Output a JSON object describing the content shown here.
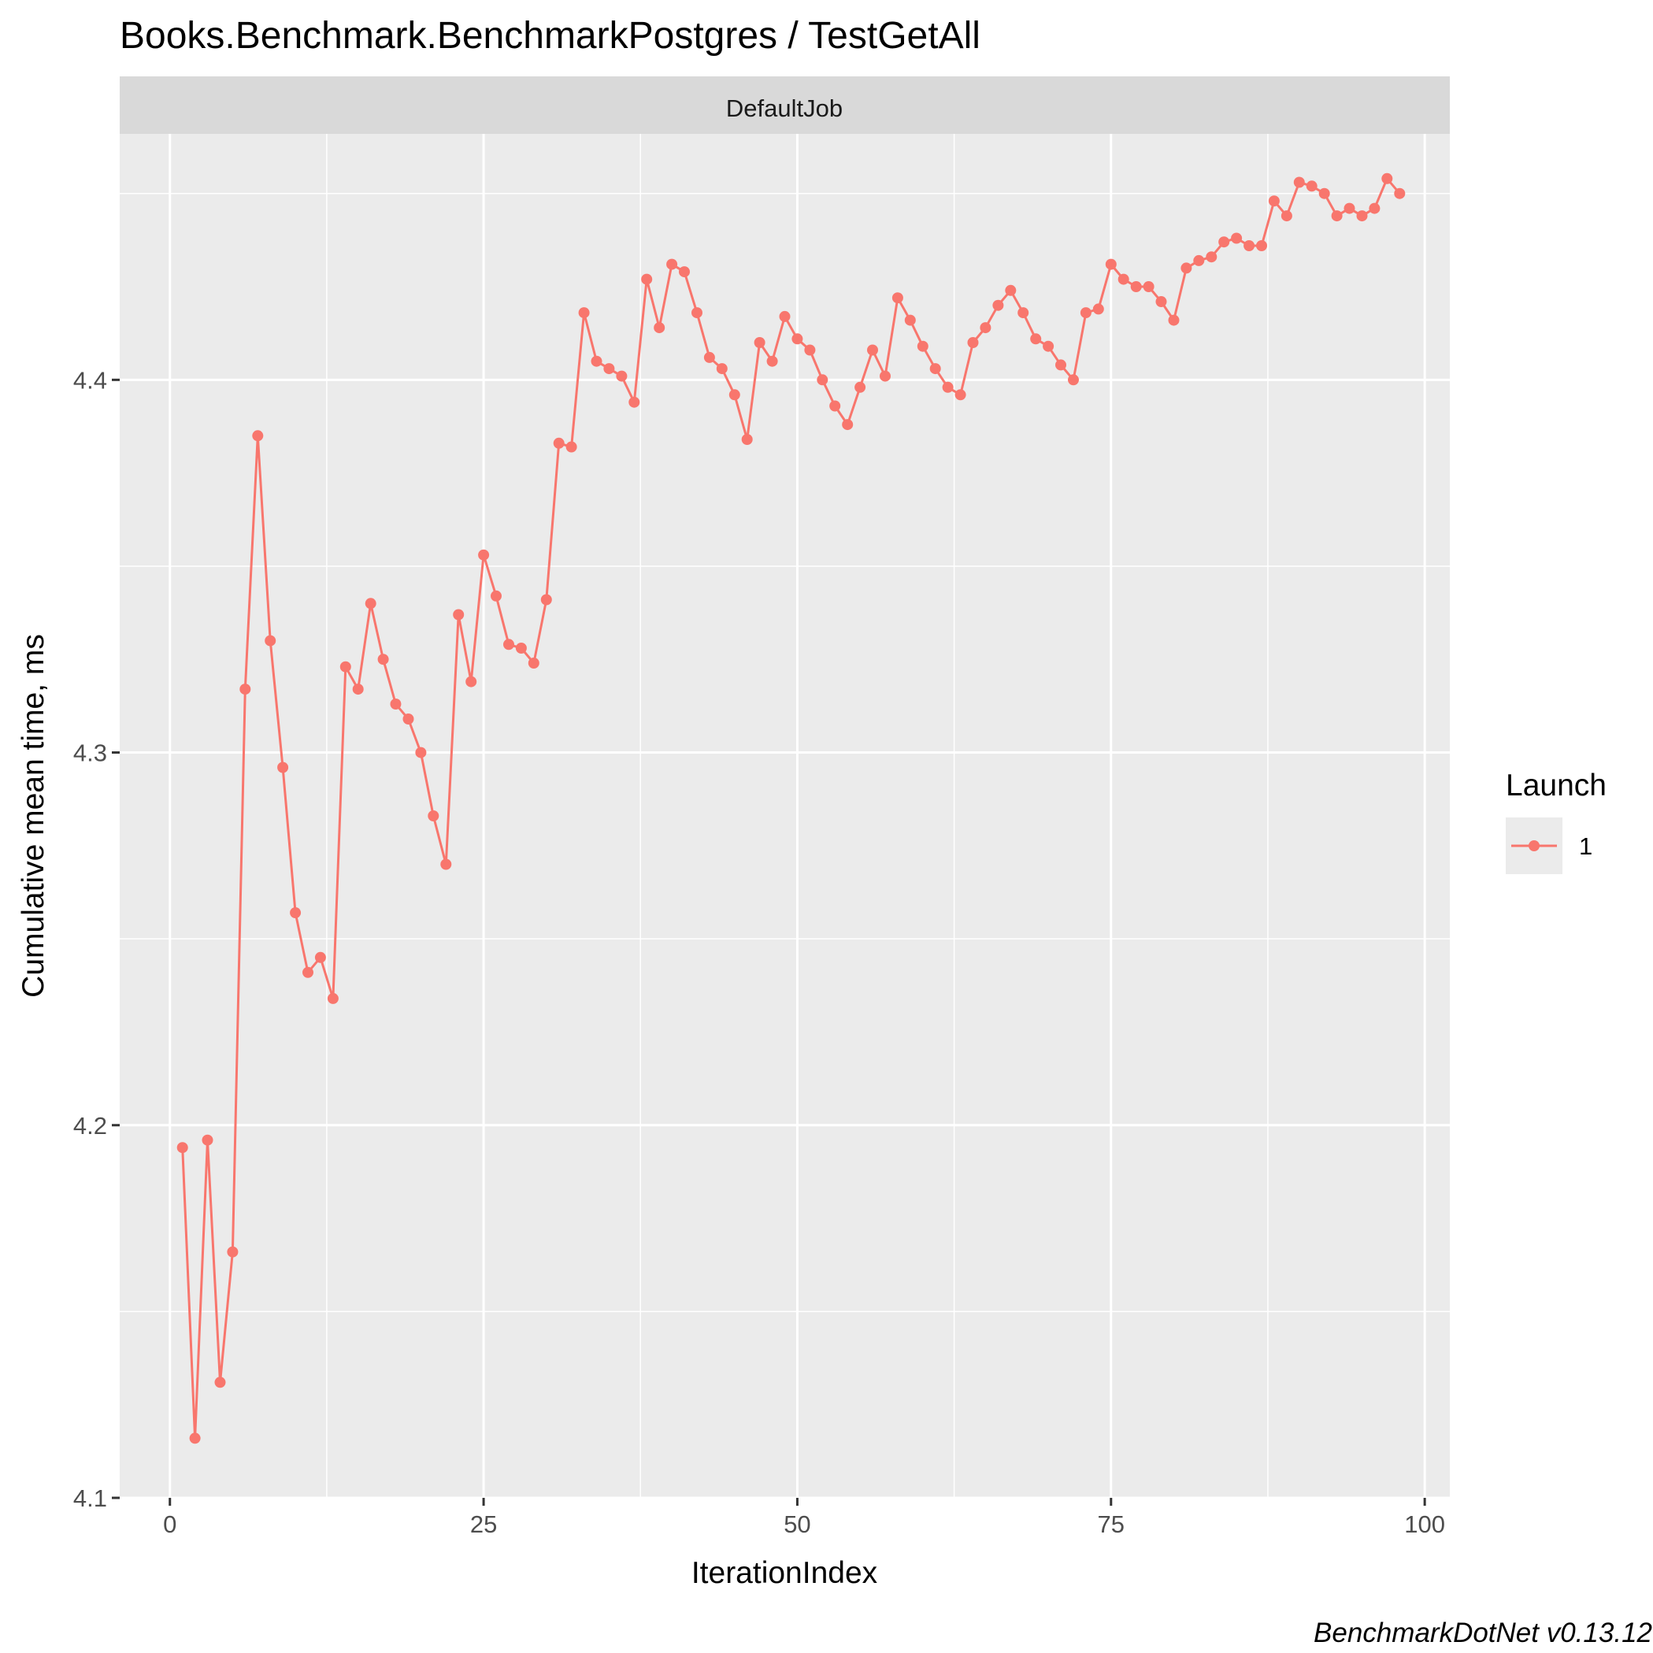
{
  "chart_data": {
    "type": "line",
    "title": "Books.Benchmark.BenchmarkPostgres / TestGetAll",
    "facet_label": "DefaultJob",
    "xlabel": "IterationIndex",
    "ylabel": "Cumulative mean time, ms",
    "xlim": [
      -4,
      102
    ],
    "ylim": [
      4.1,
      4.466
    ],
    "x_ticks": [
      0,
      25,
      50,
      75,
      100
    ],
    "y_ticks": [
      4.1,
      4.2,
      4.3,
      4.4
    ],
    "x_tick_labels": [
      "0",
      "25",
      "50",
      "75",
      "100"
    ],
    "y_tick_labels": [
      "4.1",
      "4.2",
      "4.3",
      "4.4"
    ],
    "grid": true,
    "legend": {
      "title": "Launch",
      "position": "right",
      "entries": [
        "1"
      ]
    },
    "caption": "BenchmarkDotNet v0.13.12",
    "colors": {
      "series": "#f8766d",
      "panel": "#ebebeb",
      "strip": "#d9d9d9",
      "grid": "#ffffff"
    },
    "series": [
      {
        "name": "1",
        "x": [
          1,
          2,
          3,
          4,
          5,
          6,
          7,
          8,
          9,
          10,
          11,
          12,
          13,
          14,
          15,
          16,
          17,
          18,
          19,
          20,
          21,
          22,
          23,
          24,
          25,
          26,
          27,
          28,
          29,
          30,
          31,
          32,
          33,
          34,
          35,
          36,
          37,
          38,
          39,
          40,
          41,
          42,
          43,
          44,
          45,
          46,
          47,
          48,
          49,
          50,
          51,
          52,
          53,
          54,
          55,
          56,
          57,
          58,
          59,
          60,
          61,
          62,
          63,
          64,
          65,
          66,
          67,
          68,
          69,
          70,
          71,
          72,
          73,
          74,
          75,
          76,
          77,
          78,
          79,
          80,
          81,
          82,
          83,
          84,
          85,
          86,
          87,
          88,
          89,
          90,
          91,
          92,
          93,
          94,
          95,
          96,
          97,
          98
        ],
        "values": [
          4.194,
          4.116,
          4.196,
          4.131,
          4.166,
          4.317,
          4.385,
          4.33,
          4.296,
          4.257,
          4.241,
          4.245,
          4.234,
          4.323,
          4.317,
          4.34,
          4.325,
          4.313,
          4.309,
          4.3,
          4.283,
          4.27,
          4.337,
          4.319,
          4.353,
          4.342,
          4.329,
          4.328,
          4.324,
          4.341,
          4.383,
          4.382,
          4.418,
          4.405,
          4.403,
          4.401,
          4.394,
          4.427,
          4.414,
          4.431,
          4.429,
          4.418,
          4.406,
          4.403,
          4.396,
          4.384,
          4.41,
          4.405,
          4.417,
          4.411,
          4.408,
          4.4,
          4.393,
          4.388,
          4.398,
          4.408,
          4.401,
          4.422,
          4.416,
          4.409,
          4.403,
          4.398,
          4.396,
          4.41,
          4.414,
          4.42,
          4.424,
          4.418,
          4.411,
          4.409,
          4.404,
          4.4,
          4.418,
          4.419,
          4.431,
          4.427,
          4.425,
          4.425,
          4.421,
          4.416,
          4.43,
          4.432,
          4.433,
          4.437,
          4.438,
          4.436,
          4.436,
          4.448,
          4.444,
          4.453,
          4.452,
          4.45,
          4.444,
          4.446,
          4.444,
          4.446,
          4.454,
          4.45
        ]
      }
    ]
  }
}
